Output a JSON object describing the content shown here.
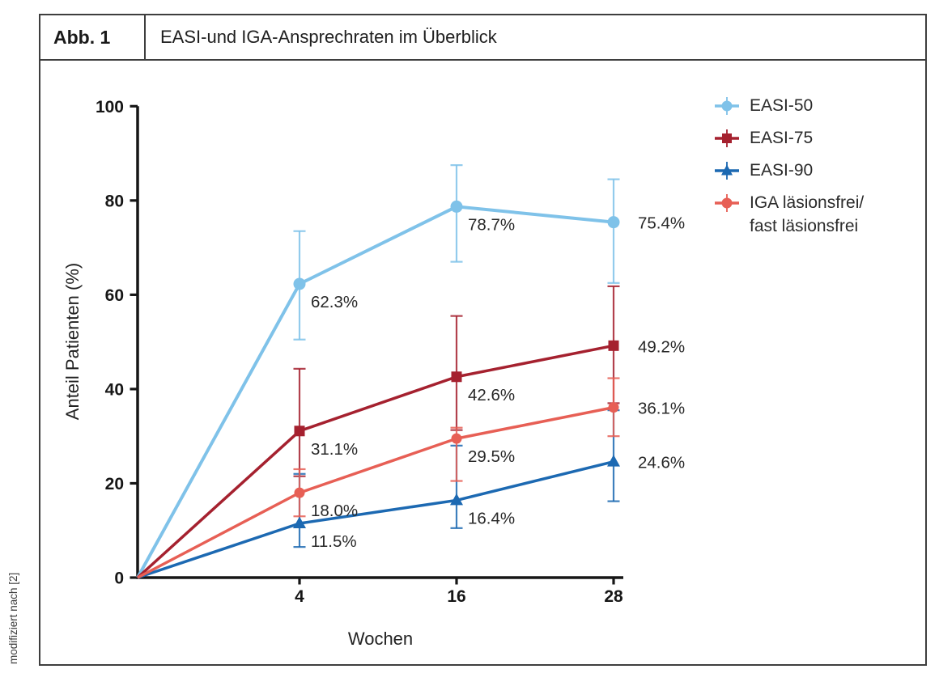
{
  "figure": {
    "label": "Abb. 1",
    "title": "EASI-und IGA-Ansprechraten im Überblick",
    "source_note": "modifiziert nach [2]"
  },
  "chart_data": {
    "type": "line",
    "title": "EASI-und IGA-Ansprechraten im Überblick",
    "xlabel": "Wochen",
    "ylabel": "Anteil Patienten (%)",
    "x_weeks": [
      0,
      4,
      16,
      28
    ],
    "x_tick_labels": [
      "4",
      "16",
      "28"
    ],
    "ylim": [
      0,
      100
    ],
    "yticks": [
      0,
      20,
      40,
      60,
      80,
      100
    ],
    "grid": false,
    "legend_position": "top-right",
    "error_bars": true,
    "series": [
      {
        "name": "EASI-50",
        "marker": "circle",
        "color": "#7fc2e9",
        "values": [
          0,
          62.3,
          78.7,
          75.4
        ],
        "point_labels": [
          "",
          "62.3%",
          "78.7%",
          "75.4%"
        ],
        "error_low": [
          null,
          50.5,
          67.0,
          62.5
        ],
        "error_high": [
          null,
          73.5,
          87.5,
          84.5
        ]
      },
      {
        "name": "EASI-75",
        "marker": "square",
        "color": "#a5212f",
        "values": [
          0,
          31.1,
          42.6,
          49.2
        ],
        "point_labels": [
          "",
          "31.1%",
          "42.6%",
          "49.2%"
        ],
        "error_low": [
          null,
          21.5,
          31.3,
          37.0
        ],
        "error_high": [
          null,
          44.3,
          55.5,
          61.8
        ]
      },
      {
        "name": "EASI-90",
        "marker": "triangle",
        "color": "#1c69b2",
        "values": [
          0,
          11.5,
          16.4,
          24.6
        ],
        "point_labels": [
          "",
          "11.5%",
          "16.4%",
          "24.6%"
        ],
        "error_low": [
          null,
          6.5,
          10.5,
          16.2
        ],
        "error_high": [
          null,
          22.0,
          28.0,
          35.5
        ]
      },
      {
        "name": "IGA läsionsfrei/\nfast läsionsfrei",
        "marker": "circle",
        "color": "#e75f55",
        "values": [
          0,
          18.0,
          29.5,
          36.1
        ],
        "point_labels": [
          "",
          "18.0%",
          "29.5%",
          "36.1%"
        ],
        "error_low": [
          null,
          13.0,
          20.5,
          30.0
        ],
        "error_high": [
          null,
          23.0,
          31.8,
          42.3
        ]
      }
    ]
  }
}
